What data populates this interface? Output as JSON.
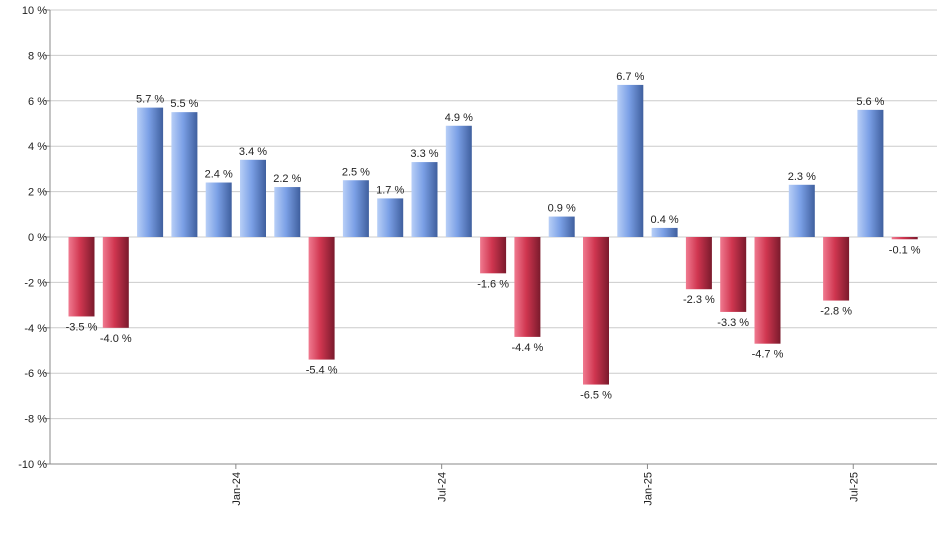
{
  "chart_data": {
    "type": "bar",
    "title": "",
    "xlabel": "",
    "ylabel": "",
    "ylim": [
      -10,
      10
    ],
    "yticks": [
      10,
      8,
      6,
      4,
      2,
      0,
      -2,
      -4,
      -6,
      -8,
      -10
    ],
    "ytick_suffix": " %",
    "grid": true,
    "values": [
      -3.5,
      -4.0,
      5.7,
      5.5,
      2.4,
      3.4,
      2.2,
      -5.4,
      2.5,
      1.7,
      3.3,
      4.9,
      -1.6,
      -4.4,
      0.9,
      -6.5,
      6.7,
      0.4,
      -2.3,
      -3.3,
      -4.7,
      2.3,
      -2.8,
      5.6,
      -0.1
    ],
    "value_labels": [
      "-3.5 %",
      "-4.0 %",
      "5.7 %",
      "5.5 %",
      "2.4 %",
      "3.4 %",
      "2.2 %",
      "-5.4 %",
      "2.5 %",
      "1.7 %",
      "3.3 %",
      "4.9 %",
      "-1.6 %",
      "-4.4 %",
      "0.9 %",
      "-6.5 %",
      "6.7 %",
      "0.4 %",
      "-2.3 %",
      "-3.3 %",
      "-4.7 %",
      "2.3 %",
      "-2.8 %",
      "5.6 %",
      "-0.1 %"
    ],
    "x_tick_labels": [
      {
        "index": 4.5,
        "label": "Jan-24"
      },
      {
        "index": 10.5,
        "label": "Jul-24"
      },
      {
        "index": 16.5,
        "label": "Jan-25"
      },
      {
        "index": 22.5,
        "label": "Jul-25"
      }
    ],
    "colors": {
      "positive_light": "#b8cff7",
      "positive_mid": "#7ba0e6",
      "positive_dark": "#3f5f9e",
      "negative_light": "#f07a90",
      "negative_mid": "#d03650",
      "negative_dark": "#7a1a2c",
      "grid": "#cccccc",
      "axis": "#888888"
    }
  }
}
